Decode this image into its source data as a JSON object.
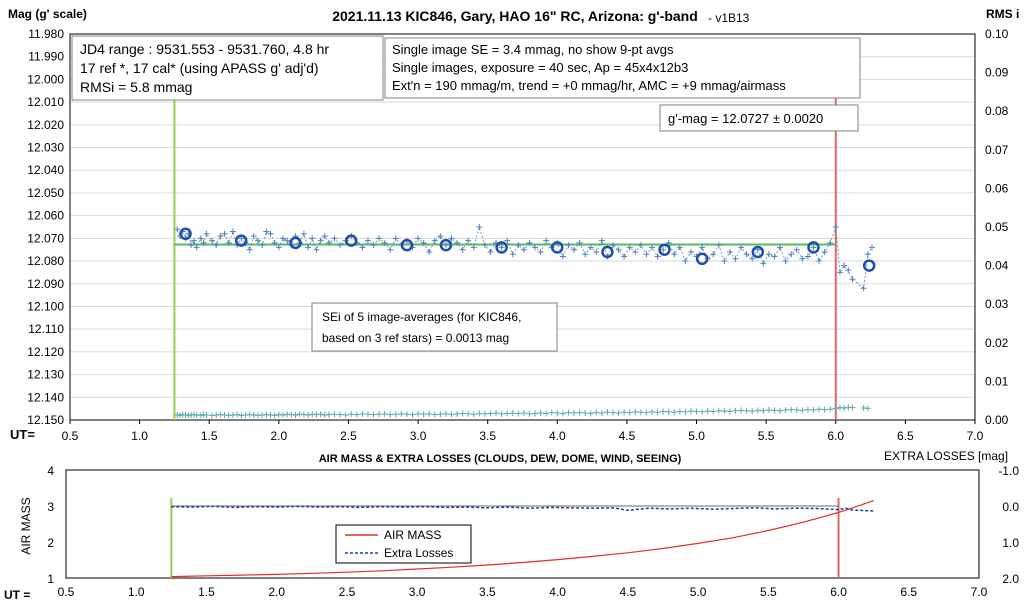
{
  "chart_data": [
    {
      "type": "scatter",
      "title": "2021.11.13 KIC846, Gary, HAO 16\" RC, Arizona: g'-band",
      "version": "- v1B13",
      "ylabel": "Mag (g' scale)",
      "y2label": "RMS i",
      "x_axis_label": "UT=",
      "xlim": [
        0.5,
        7.0
      ],
      "ylim": [
        11.98,
        12.15
      ],
      "y_reversed": true,
      "y2lim": [
        0.0,
        0.1
      ],
      "xticks": [
        "0.5",
        "1.0",
        "1.5",
        "2.0",
        "2.5",
        "3.0",
        "3.5",
        "4.0",
        "4.5",
        "5.0",
        "5.5",
        "6.0",
        "6.5",
        "7.0"
      ],
      "yticks": [
        "11.980",
        "11.990",
        "12.000",
        "12.010",
        "12.020",
        "12.030",
        "12.040",
        "12.050",
        "12.060",
        "12.070",
        "12.080",
        "12.090",
        "12.100",
        "12.110",
        "12.120",
        "12.130",
        "12.140",
        "12.150"
      ],
      "y2ticks": [
        "0.00",
        "0.01",
        "0.02",
        "0.03",
        "0.04",
        "0.05",
        "0.06",
        "0.07",
        "0.08",
        "0.09",
        "0.10"
      ],
      "vertical_lines": [
        {
          "x": 1.25,
          "color": "#92d050"
        },
        {
          "x": 6.0,
          "color": "#e06666"
        }
      ],
      "fit_line": {
        "x": [
          1.25,
          6.0
        ],
        "y": [
          12.0727,
          12.0727
        ],
        "color": "#5cb85c"
      },
      "series": [
        {
          "name": "",
          "style": "plus-dashed",
          "color": "#4f81bd",
          "x": [
            1.27,
            1.29,
            1.31,
            1.33,
            1.35,
            1.37,
            1.39,
            1.41,
            1.44,
            1.46,
            1.48,
            1.52,
            1.55,
            1.58,
            1.61,
            1.64,
            1.67,
            1.7,
            1.73,
            1.76,
            1.79,
            1.82,
            1.85,
            1.88,
            1.91,
            1.94,
            1.97,
            2.0,
            2.03,
            2.06,
            2.09,
            2.12,
            2.15,
            2.18,
            2.21,
            2.24,
            2.27,
            2.3,
            2.33,
            2.36,
            2.4,
            2.44,
            2.48,
            2.52,
            2.56,
            2.6,
            2.64,
            2.68,
            2.72,
            2.76,
            2.8,
            2.84,
            2.88,
            2.92,
            2.96,
            3.0,
            3.04,
            3.08,
            3.12,
            3.16,
            3.2,
            3.24,
            3.28,
            3.32,
            3.36,
            3.4,
            3.44,
            3.48,
            3.52,
            3.56,
            3.6,
            3.64,
            3.68,
            3.72,
            3.76,
            3.8,
            3.84,
            3.88,
            3.92,
            3.96,
            4.0,
            4.04,
            4.08,
            4.12,
            4.16,
            4.2,
            4.24,
            4.28,
            4.32,
            4.36,
            4.4,
            4.44,
            4.48,
            4.52,
            4.56,
            4.6,
            4.64,
            4.68,
            4.72,
            4.76,
            4.8,
            4.84,
            4.88,
            4.92,
            4.96,
            5.0,
            5.04,
            5.08,
            5.12,
            5.16,
            5.2,
            5.24,
            5.28,
            5.32,
            5.36,
            5.4,
            5.44,
            5.48,
            5.52,
            5.56,
            5.6,
            5.64,
            5.68,
            5.72,
            5.76,
            5.8,
            5.84,
            5.88,
            5.92,
            5.96,
            6.0,
            6.03,
            6.06,
            6.09,
            6.12,
            6.2,
            6.23,
            6.26
          ],
          "y": [
            12.066,
            12.069,
            12.067,
            12.07,
            12.068,
            12.073,
            12.071,
            12.074,
            12.07,
            12.072,
            12.068,
            12.071,
            12.073,
            12.069,
            12.068,
            12.072,
            12.067,
            12.073,
            12.07,
            12.072,
            12.075,
            12.069,
            12.071,
            12.073,
            12.067,
            12.068,
            12.072,
            12.074,
            12.07,
            12.071,
            12.073,
            12.069,
            12.072,
            12.068,
            12.074,
            12.07,
            12.075,
            12.071,
            12.069,
            12.072,
            12.07,
            12.073,
            12.071,
            12.069,
            12.072,
            12.074,
            12.071,
            12.073,
            12.07,
            12.072,
            12.075,
            12.07,
            12.073,
            12.071,
            12.074,
            12.07,
            12.072,
            12.076,
            12.071,
            12.069,
            12.073,
            12.07,
            12.072,
            12.075,
            12.071,
            12.074,
            12.065,
            12.073,
            12.076,
            12.072,
            12.074,
            12.071,
            12.077,
            12.073,
            12.075,
            12.072,
            12.074,
            12.076,
            12.071,
            12.074,
            12.072,
            12.078,
            12.073,
            12.075,
            12.072,
            12.077,
            12.074,
            12.076,
            12.071,
            12.078,
            12.073,
            12.075,
            12.078,
            12.074,
            12.076,
            12.073,
            12.077,
            12.074,
            12.078,
            12.075,
            12.072,
            12.077,
            12.074,
            12.08,
            12.076,
            12.078,
            12.074,
            12.079,
            12.077,
            12.073,
            12.08,
            12.076,
            12.079,
            12.074,
            12.077,
            12.079,
            12.075,
            12.081,
            12.077,
            12.078,
            12.074,
            12.08,
            12.077,
            12.075,
            12.079,
            12.078,
            12.074,
            12.08,
            12.076,
            12.072,
            12.065,
            12.085,
            12.082,
            12.084,
            12.088,
            12.092,
            12.077,
            12.074
          ],
          "rms_i": [
            0.0013,
            0.0012,
            0.0014,
            0.0013,
            0.0012,
            0.0013,
            0.0014,
            0.0013,
            0.0012,
            0.0014,
            0.0013,
            0.0012,
            0.0013,
            0.0014,
            0.0013,
            0.0012,
            0.0013,
            0.0014,
            0.0012,
            0.0013,
            0.0014,
            0.0013,
            0.0012,
            0.0013,
            0.0014,
            0.0013,
            0.0012,
            0.0014,
            0.0013,
            0.0015,
            0.0014,
            0.0013,
            0.0015,
            0.0014,
            0.0013,
            0.0015,
            0.0014,
            0.0015,
            0.0013,
            0.0014,
            0.0015,
            0.0014,
            0.0013,
            0.0015,
            0.0014,
            0.0016,
            0.0015,
            0.0014,
            0.0015,
            0.0016,
            0.0014,
            0.0015,
            0.0016,
            0.0015,
            0.0014,
            0.0016,
            0.0015,
            0.0016,
            0.0014,
            0.0015,
            0.0016,
            0.0015,
            0.0016,
            0.0017,
            0.0016,
            0.0015,
            0.0017,
            0.0016,
            0.0017,
            0.0018,
            0.0016,
            0.0017,
            0.0018,
            0.0017,
            0.0018,
            0.0016,
            0.0017,
            0.0018,
            0.0017,
            0.0019,
            0.0018,
            0.0017,
            0.0019,
            0.0018,
            0.0019,
            0.0018,
            0.0017,
            0.0019,
            0.0018,
            0.002,
            0.0019,
            0.0018,
            0.002,
            0.0019,
            0.0021,
            0.002,
            0.0019,
            0.0021,
            0.002,
            0.0022,
            0.0021,
            0.002,
            0.0022,
            0.0021,
            0.0023,
            0.0022,
            0.0021,
            0.0023,
            0.0022,
            0.0024,
            0.0023,
            0.0022,
            0.0024,
            0.0025,
            0.0024,
            0.0023,
            0.0025,
            0.0024,
            0.0026,
            0.0025,
            0.0024,
            0.0026,
            0.0027,
            0.0026,
            0.0025,
            0.0027,
            0.0026,
            0.0028,
            0.0027,
            0.0028,
            0.003,
            0.0032,
            0.0031,
            0.0033,
            0.0032,
            0.0031,
            0.003
          ]
        },
        {
          "name": "",
          "style": "open-circle",
          "color": "#1f4fa8",
          "x": [
            1.33,
            1.73,
            2.12,
            2.52,
            2.92,
            3.2,
            3.6,
            4.0,
            4.36,
            4.77,
            5.04,
            5.44,
            5.84,
            6.24
          ],
          "y": [
            12.068,
            12.071,
            12.072,
            12.071,
            12.073,
            12.073,
            12.074,
            12.074,
            12.076,
            12.075,
            12.079,
            12.076,
            12.074,
            12.082
          ]
        }
      ],
      "annotations": {
        "box1": [
          "JD4 range : 9531.553 - 9531.760,  4.8  hr",
          "17 ref *, 17 cal* (using APASS g' adj'd)",
          "RMSi = 5.8 mmag"
        ],
        "box2": [
          "Single image SE = 3.4 mmag, no show  9-pt avgs",
          "Single images, exposure = 40 sec, Ap = 45x4x12b3",
          "Ext'n = 190 mmag/m, trend = +0 mmag/hr, AMC = +9 mmag/airmass"
        ],
        "box3": [
          "g'-mag = 12.0727 ± 0.0020"
        ],
        "box4": [
          "SEi of 5 image-averages (for KIC846,",
          "based on 3 ref stars) = 0.0013 mag"
        ]
      }
    },
    {
      "type": "line",
      "title": "AIR MASS & EXTRA LOSSES (CLOUDS, DEW, DOME, WIND, SEEING)",
      "ylabel": "AIR MASS",
      "y2label": "EXTRA LOSSES [mag]",
      "x_axis_label": "UT =",
      "xlim": [
        0.5,
        7.0
      ],
      "ylim": [
        1,
        4
      ],
      "y2lim": [
        -1.0,
        2.0
      ],
      "y2_reversed": true,
      "xticks": [
        "0.5",
        "1.0",
        "1.5",
        "2.0",
        "2.5",
        "3.0",
        "3.5",
        "4.0",
        "4.5",
        "5.0",
        "5.5",
        "6.0",
        "6.5",
        "7.0"
      ],
      "yticks": [
        "1",
        "2",
        "3",
        "4"
      ],
      "y2ticks": [
        "-1.0",
        "0.0",
        "1.0",
        "2.0"
      ],
      "vertical_lines": [
        {
          "x": 1.25,
          "color": "#92d050"
        },
        {
          "x": 6.0,
          "color": "#e06666"
        }
      ],
      "legend": {
        "placement": "bottom-center",
        "entries": [
          "AIR MASS",
          "Extra Losses"
        ]
      },
      "series": [
        {
          "name": "AIR MASS",
          "color": "#e0302a",
          "axis": "left",
          "x": [
            1.25,
            1.5,
            1.75,
            2.0,
            2.25,
            2.5,
            2.75,
            3.0,
            3.25,
            3.5,
            3.75,
            4.0,
            4.25,
            4.5,
            4.75,
            5.0,
            5.25,
            5.5,
            5.75,
            6.0,
            6.1,
            6.25
          ],
          "y": [
            1.04,
            1.06,
            1.08,
            1.1,
            1.13,
            1.16,
            1.2,
            1.25,
            1.3,
            1.36,
            1.43,
            1.51,
            1.6,
            1.7,
            1.82,
            1.96,
            2.12,
            2.32,
            2.55,
            2.82,
            2.95,
            3.15
          ]
        },
        {
          "name": "Extra Losses",
          "color": "#1f3f9f",
          "axis": "right",
          "x": [
            1.25,
            1.4,
            1.55,
            1.7,
            1.85,
            2.0,
            2.15,
            2.3,
            2.45,
            2.6,
            2.75,
            2.9,
            3.05,
            3.2,
            3.35,
            3.5,
            3.65,
            3.8,
            3.95,
            4.1,
            4.25,
            4.4,
            4.5,
            4.65,
            4.8,
            4.95,
            5.1,
            5.25,
            5.4,
            5.55,
            5.7,
            5.85,
            6.0,
            6.05,
            6.1,
            6.25
          ],
          "y": [
            0.02,
            0.03,
            0.01,
            0.04,
            0.02,
            0.03,
            0.01,
            0.03,
            0.02,
            0.04,
            0.02,
            0.03,
            0.02,
            0.04,
            0.03,
            0.05,
            0.03,
            0.06,
            0.04,
            0.05,
            0.06,
            0.05,
            0.12,
            0.06,
            0.08,
            0.06,
            0.09,
            0.07,
            0.05,
            0.08,
            0.06,
            0.07,
            0.1,
            0.06,
            0.11,
            0.14
          ]
        }
      ]
    }
  ]
}
